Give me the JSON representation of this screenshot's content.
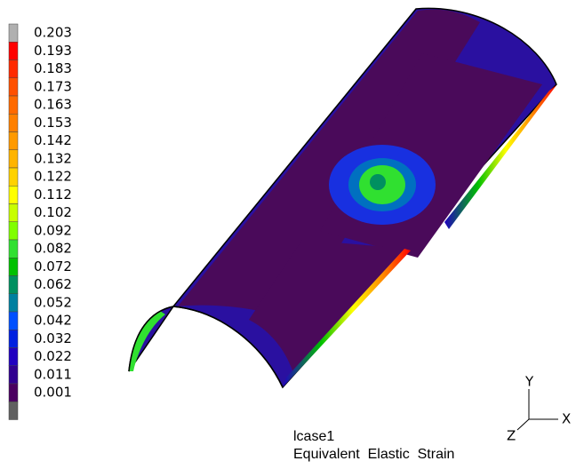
{
  "legend": {
    "labels": [
      "0.203",
      "0.193",
      "0.183",
      "0.173",
      "0.163",
      "0.153",
      "0.142",
      "0.132",
      "0.122",
      "0.112",
      "0.102",
      "0.092",
      "0.082",
      "0.072",
      "0.062",
      "0.052",
      "0.042",
      "0.032",
      "0.022",
      "0.011",
      "0.001"
    ]
  },
  "caption": {
    "case": "lcase1",
    "result": "Equivalent  Elastic  Strain"
  },
  "triad": {
    "y": "Y",
    "x": "X",
    "z": "Z"
  }
}
